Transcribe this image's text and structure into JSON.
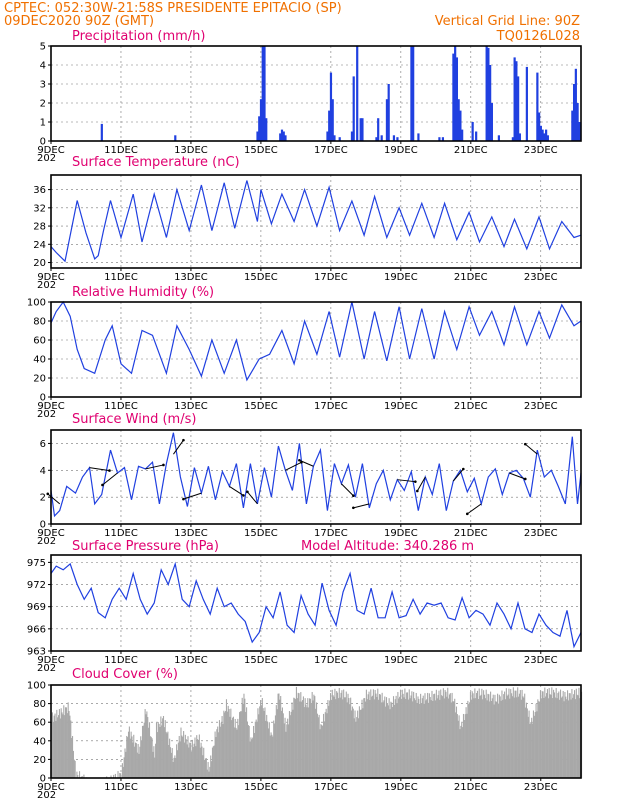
{
  "header": {
    "source_line": "CPTEC:  052:30W-21:58S  PRESIDENTE EPITACIO (SP)",
    "run_line": "09DEC2020 90Z (GMT)",
    "grid_line": "Vertical Grid Line: 90Z",
    "code": "TQ0126L028",
    "model_altitude": "Model Altitude: 340.286  m"
  },
  "x_axis": {
    "ticks": [
      "9DEC",
      "11DEC",
      "13DEC",
      "15DEC",
      "17DEC",
      "19DEC",
      "21DEC",
      "23DEC"
    ],
    "tick_days": [
      9,
      11,
      13,
      15,
      17,
      19,
      21,
      23
    ],
    "range_days": [
      9,
      24.15
    ],
    "year_label": "202"
  },
  "colors": {
    "line": "#2040e0",
    "bars": "#2040e0",
    "cloud": "#a8a8a8",
    "title": "#e00070",
    "header": "#f07000"
  },
  "chart_data": [
    {
      "id": "precip",
      "type": "bar",
      "title": "Precipitation (mm/h)",
      "ylim": [
        0,
        5
      ],
      "yticks": [
        0,
        1,
        2,
        3,
        4,
        5
      ],
      "x": [
        10.45,
        12.55,
        14.9,
        14.95,
        15.0,
        15.05,
        15.1,
        15.15,
        15.55,
        15.6,
        15.65,
        15.7,
        16.9,
        16.95,
        17.0,
        17.05,
        17.1,
        17.25,
        17.6,
        17.65,
        17.75,
        17.85,
        17.9,
        18.3,
        18.35,
        18.45,
        18.6,
        18.65,
        18.8,
        18.9,
        19.3,
        19.35,
        19.5,
        20.1,
        20.2,
        20.5,
        20.55,
        20.6,
        20.65,
        20.7,
        20.75,
        21.05,
        21.15,
        21.45,
        21.5,
        21.55,
        21.6,
        21.8,
        22.2,
        22.25,
        22.3,
        22.35,
        22.4,
        22.6,
        22.9,
        22.95,
        23.0,
        23.05,
        23.1,
        23.15,
        23.2,
        23.9,
        23.95,
        24.0,
        24.05,
        24.1
      ],
      "values": [
        0.9,
        0.3,
        0.5,
        1.3,
        2.2,
        5.0,
        5.0,
        1.2,
        0.4,
        0.6,
        0.5,
        0.3,
        0.5,
        1.6,
        3.6,
        2.2,
        0.3,
        0.2,
        0.5,
        3.4,
        5.0,
        1.2,
        1.2,
        0.2,
        1.2,
        0.3,
        2.2,
        3.0,
        0.3,
        0.2,
        5.0,
        5.0,
        0.4,
        0.2,
        0.2,
        4.6,
        5.0,
        4.4,
        2.2,
        1.6,
        0.6,
        1.0,
        0.5,
        5.0,
        4.9,
        4.0,
        2.0,
        0.3,
        0.2,
        4.4,
        4.2,
        3.4,
        0.4,
        3.9,
        3.6,
        1.5,
        0.8,
        0.6,
        0.4,
        0.6,
        0.3,
        1.6,
        3.0,
        3.8,
        2.0,
        1.0
      ]
    },
    {
      "id": "temp",
      "type": "line",
      "title": "Surface Temperature (nC)",
      "ylim": [
        18.8,
        39.2
      ],
      "yticks": [
        20,
        24,
        28,
        32,
        36
      ],
      "x": [
        9.0,
        9.15,
        9.4,
        9.75,
        10.0,
        10.25,
        10.35,
        10.5,
        10.7,
        11.0,
        11.35,
        11.6,
        11.95,
        12.3,
        12.6,
        12.95,
        13.3,
        13.6,
        13.95,
        14.25,
        14.6,
        14.9,
        15.0,
        15.3,
        15.6,
        15.95,
        16.25,
        16.6,
        16.95,
        17.25,
        17.6,
        17.95,
        18.25,
        18.6,
        18.95,
        19.25,
        19.6,
        19.95,
        20.25,
        20.6,
        20.95,
        21.25,
        21.6,
        21.95,
        22.25,
        22.6,
        22.95,
        23.25,
        23.6,
        23.95,
        24.15
      ],
      "values": [
        23.5,
        22.2,
        20.3,
        33.6,
        26.5,
        20.8,
        21.5,
        27.0,
        33.6,
        25.5,
        35.0,
        24.5,
        35.0,
        25.5,
        36.0,
        27.0,
        37.0,
        27.0,
        37.5,
        27.5,
        38.0,
        29.0,
        36.0,
        28.5,
        35.0,
        29.0,
        36.0,
        28.0,
        36.5,
        27.0,
        33.5,
        26.0,
        34.5,
        25.5,
        32.0,
        26.0,
        33.0,
        25.5,
        33.0,
        25.0,
        31.0,
        24.5,
        30.0,
        23.5,
        29.5,
        23.0,
        30.0,
        23.0,
        29.0,
        25.5,
        26.0
      ]
    },
    {
      "id": "rh",
      "type": "line",
      "title": "Relative Humidity (%)",
      "ylim": [
        0,
        100
      ],
      "yticks": [
        0,
        20,
        40,
        60,
        80,
        100
      ],
      "x": [
        9.0,
        9.15,
        9.35,
        9.55,
        9.75,
        9.95,
        10.25,
        10.55,
        10.75,
        11.0,
        11.3,
        11.6,
        11.9,
        12.3,
        12.6,
        12.95,
        13.3,
        13.6,
        13.95,
        14.3,
        14.6,
        14.95,
        15.25,
        15.6,
        15.95,
        16.25,
        16.6,
        16.95,
        17.25,
        17.6,
        17.95,
        18.25,
        18.6,
        18.95,
        19.25,
        19.6,
        19.95,
        20.25,
        20.6,
        20.95,
        21.25,
        21.6,
        21.95,
        22.25,
        22.6,
        22.95,
        23.25,
        23.6,
        23.95,
        24.15
      ],
      "values": [
        78,
        90,
        100,
        85,
        50,
        30,
        25,
        60,
        75,
        35,
        25,
        70,
        65,
        25,
        75,
        50,
        22,
        60,
        25,
        60,
        18,
        40,
        45,
        70,
        35,
        80,
        45,
        90,
        42,
        100,
        40,
        90,
        38,
        95,
        40,
        93,
        40,
        90,
        50,
        95,
        65,
        90,
        55,
        95,
        55,
        90,
        62,
        97,
        75,
        80
      ]
    },
    {
      "id": "wind",
      "type": "line",
      "title": "Surface Wind (m/s)",
      "ylim": [
        0,
        7
      ],
      "yticks": [
        0,
        2,
        4,
        6
      ],
      "x": [
        9.0,
        9.1,
        9.25,
        9.45,
        9.7,
        9.9,
        10.1,
        10.25,
        10.45,
        10.7,
        10.9,
        11.1,
        11.3,
        11.5,
        11.7,
        11.9,
        12.1,
        12.3,
        12.5,
        12.7,
        12.9,
        13.1,
        13.3,
        13.5,
        13.7,
        13.9,
        14.1,
        14.3,
        14.5,
        14.7,
        14.9,
        15.1,
        15.3,
        15.5,
        15.7,
        15.9,
        16.1,
        16.3,
        16.5,
        16.7,
        16.9,
        17.1,
        17.3,
        17.5,
        17.7,
        17.9,
        18.1,
        18.3,
        18.5,
        18.7,
        18.9,
        19.1,
        19.3,
        19.5,
        19.7,
        19.9,
        20.1,
        20.3,
        20.5,
        20.7,
        20.9,
        21.1,
        21.3,
        21.5,
        21.7,
        21.9,
        22.1,
        22.3,
        22.5,
        22.7,
        22.9,
        23.1,
        23.3,
        23.5,
        23.7,
        23.9,
        24.05,
        24.15
      ],
      "values": [
        2.5,
        0.6,
        1.0,
        2.8,
        2.3,
        3.5,
        4.2,
        1.5,
        2.2,
        5.5,
        3.8,
        4.2,
        1.8,
        4.3,
        4.1,
        4.6,
        1.5,
        4.5,
        6.8,
        3.5,
        1.3,
        4.2,
        2.3,
        4.3,
        1.8,
        3.9,
        2.8,
        4.5,
        1.2,
        4.5,
        1.5,
        4.2,
        2.0,
        5.8,
        4.0,
        2.5,
        6.0,
        1.5,
        4.3,
        5.5,
        1.0,
        4.5,
        3.0,
        4.4,
        2.0,
        4.5,
        1.2,
        3.0,
        4.0,
        1.8,
        3.3,
        2.5,
        3.9,
        1.0,
        3.5,
        2.2,
        4.5,
        1.0,
        3.2,
        4.0,
        2.4,
        3.4,
        1.5,
        3.5,
        4.1,
        2.2,
        3.8,
        4.0,
        3.4,
        2.0,
        5.5,
        3.5,
        4.0,
        2.8,
        1.5,
        6.5,
        1.5,
        3.8
      ]
    },
    {
      "id": "pressure",
      "type": "line",
      "title": "Surface Pressure (hPa)",
      "ylim": [
        963,
        976
      ],
      "yticks": [
        963,
        966,
        969,
        972,
        975
      ],
      "x": [
        9.0,
        9.15,
        9.35,
        9.55,
        9.75,
        9.95,
        10.15,
        10.35,
        10.55,
        10.75,
        10.95,
        11.15,
        11.35,
        11.55,
        11.75,
        11.95,
        12.15,
        12.35,
        12.55,
        12.75,
        12.95,
        13.15,
        13.35,
        13.55,
        13.75,
        13.95,
        14.15,
        14.35,
        14.55,
        14.75,
        14.95,
        15.15,
        15.35,
        15.55,
        15.75,
        15.95,
        16.15,
        16.35,
        16.55,
        16.75,
        16.95,
        17.15,
        17.35,
        17.55,
        17.75,
        17.95,
        18.15,
        18.35,
        18.55,
        18.75,
        18.95,
        19.15,
        19.35,
        19.55,
        19.75,
        19.95,
        20.15,
        20.35,
        20.55,
        20.75,
        20.95,
        21.15,
        21.35,
        21.55,
        21.75,
        21.95,
        22.15,
        22.35,
        22.55,
        22.75,
        22.95,
        23.15,
        23.35,
        23.55,
        23.75,
        23.95,
        24.15
      ],
      "values": [
        973.5,
        974.5,
        974.0,
        974.8,
        972.0,
        970.0,
        971.5,
        968.2,
        967.5,
        970.0,
        971.5,
        970.0,
        973.5,
        970.0,
        968.0,
        969.5,
        974.0,
        972.0,
        974.8,
        970.0,
        969.0,
        972.5,
        970.0,
        968.0,
        971.5,
        969.0,
        969.5,
        968.0,
        967.0,
        964.2,
        965.5,
        969.0,
        967.5,
        971.0,
        966.5,
        965.5,
        970.5,
        968.0,
        966.5,
        972.2,
        968.5,
        966.5,
        971.0,
        973.5,
        968.5,
        968.0,
        971.5,
        967.5,
        967.5,
        971.0,
        967.5,
        967.8,
        970.0,
        968.0,
        969.5,
        969.2,
        969.5,
        967.5,
        967.2,
        970.2,
        967.5,
        968.5,
        968.0,
        966.5,
        969.5,
        968.0,
        966.0,
        969.5,
        966.0,
        965.5,
        968.0,
        966.5,
        965.5,
        965.0,
        968.5,
        963.6,
        965.5
      ]
    },
    {
      "id": "cloud",
      "type": "bar",
      "title": "Cloud Cover (%)",
      "ylim": [
        0,
        100
      ],
      "yticks": [
        0,
        20,
        40,
        60,
        80,
        100
      ],
      "x": [
        9.0,
        9.5,
        9.7,
        10.0,
        10.2,
        10.5,
        10.7,
        11.0,
        11.2,
        11.5,
        11.7,
        11.95,
        12.0,
        12.2,
        12.5,
        12.7,
        13.0,
        13.2,
        13.5,
        13.7,
        13.9,
        14.0,
        14.3,
        14.5,
        14.7,
        15.0,
        15.3,
        15.5,
        15.7,
        16.0,
        16.3,
        16.5,
        16.7,
        17.0,
        17.3,
        17.5,
        17.7,
        18.0,
        18.3,
        18.5,
        18.7,
        19.0,
        19.3,
        19.5,
        19.7,
        20.0,
        20.3,
        20.5,
        20.7,
        21.0,
        21.3,
        21.5,
        21.7,
        22.0,
        22.3,
        22.5,
        22.7,
        23.0,
        23.3,
        23.5,
        23.7,
        24.0,
        24.15
      ],
      "values": [
        70,
        82,
        10,
        2,
        0,
        1,
        3,
        10,
        58,
        35,
        80,
        30,
        60,
        70,
        25,
        55,
        40,
        50,
        15,
        55,
        70,
        85,
        60,
        95,
        45,
        90,
        50,
        98,
        60,
        98,
        85,
        95,
        60,
        96,
        97,
        92,
        70,
        95,
        97,
        90,
        85,
        97,
        95,
        90,
        92,
        95,
        98,
        90,
        60,
        96,
        97,
        94,
        90,
        97,
        98,
        95,
        65,
        97,
        98,
        96,
        94,
        97,
        98
      ]
    }
  ]
}
